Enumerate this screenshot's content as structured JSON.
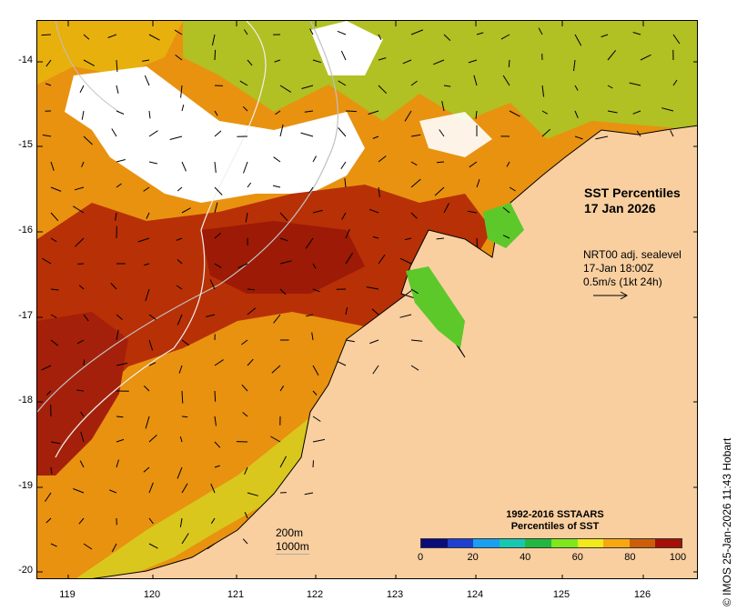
{
  "map": {
    "title_line1": "SST Percentiles",
    "title_line2": "17 Jan 2026",
    "vector_line1": "NRT00 adj. sealevel",
    "vector_line2": "17-Jan 18:00Z",
    "vector_line3": "0.5m/s (1kt 24h)",
    "contour_200": "200m",
    "contour_1000": "1000m",
    "credit": "© IMOS 25-Jan-2026 11:43 Hobart",
    "latitude_labels": [
      "-14",
      "-15",
      "-16",
      "-17",
      "-18",
      "-19",
      "-20"
    ],
    "longitude_labels": [
      "119",
      "120",
      "121",
      "122",
      "123",
      "124",
      "125",
      "126"
    ],
    "land_color": "#f9cfa0",
    "cloud_color": "#ffffff",
    "icons": [
      "current-vector-arrow",
      "reference-arrow-icon"
    ]
  },
  "colorbar": {
    "title_line1": "1992-2016 SSTAARS",
    "title_line2": "Percentiles of SST",
    "ticks": [
      "0",
      "20",
      "40",
      "60",
      "80",
      "100"
    ],
    "colors": [
      "#0b0b7a",
      "#1f3fd0",
      "#1aa0f0",
      "#16c8b0",
      "#22b840",
      "#7ee81a",
      "#f2e81a",
      "#f8a80e",
      "#cd5e08",
      "#a50f06"
    ]
  }
}
